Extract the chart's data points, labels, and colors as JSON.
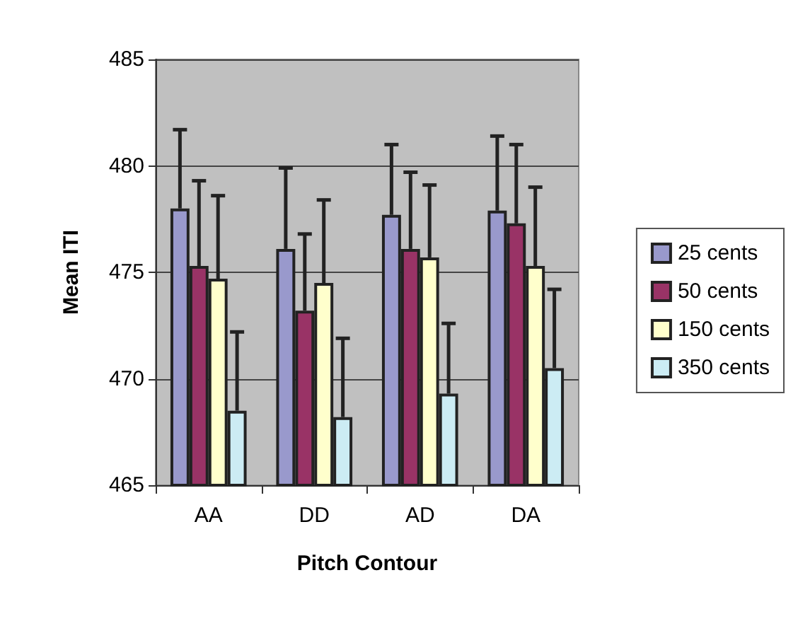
{
  "chart_data": {
    "type": "bar",
    "xlabel": "Pitch Contour",
    "ylabel": "Mean ITI",
    "categories": [
      "AA",
      "DD",
      "AD",
      "DA"
    ],
    "series": [
      {
        "name": "25 cents",
        "color": "#9999cc",
        "values": [
          478.0,
          476.1,
          477.7,
          477.9
        ],
        "errors": [
          [
            478.0,
            481.7
          ],
          [
            476.1,
            479.9
          ],
          [
            477.7,
            481.0
          ],
          [
            477.9,
            481.4
          ]
        ]
      },
      {
        "name": "50 cents",
        "color": "#993366",
        "values": [
          475.3,
          473.2,
          476.1,
          477.3
        ],
        "errors": [
          [
            475.3,
            479.3
          ],
          [
            473.2,
            476.8
          ],
          [
            476.1,
            479.7
          ],
          [
            477.3,
            481.0
          ]
        ]
      },
      {
        "name": "150 cents",
        "color": "#ffffcc",
        "values": [
          474.7,
          474.5,
          475.7,
          475.3
        ],
        "errors": [
          [
            474.7,
            478.6
          ],
          [
            474.5,
            478.4
          ],
          [
            475.7,
            479.1
          ],
          [
            475.3,
            479.0
          ]
        ]
      },
      {
        "name": "350 cents",
        "color": "#ccecf4",
        "values": [
          468.5,
          468.2,
          469.3,
          470.5
        ],
        "errors": [
          [
            468.5,
            472.2
          ],
          [
            468.2,
            471.9
          ],
          [
            469.3,
            472.6
          ],
          [
            470.5,
            474.2
          ]
        ]
      }
    ],
    "ylim": [
      465,
      485
    ],
    "yticks": [
      465,
      470,
      475,
      480,
      485
    ],
    "grid": "y",
    "legend": "right"
  }
}
